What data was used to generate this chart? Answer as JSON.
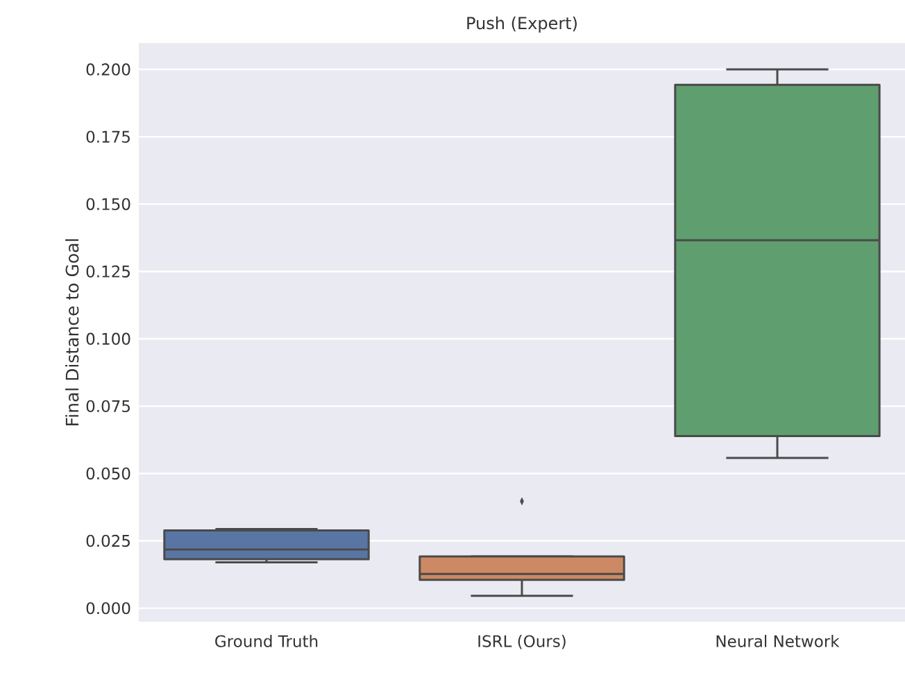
{
  "chart_data": {
    "type": "box",
    "title": "Push (Expert)",
    "ylabel": "Final Distance to Goal",
    "categories": [
      "Ground Truth",
      "ISRL (Ours)",
      "Neural Network"
    ],
    "colors": [
      "#5975a4",
      "#cc8963",
      "#5f9e6e"
    ],
    "boxes": [
      {
        "low": 0.017,
        "q1": 0.0182,
        "median": 0.0218,
        "q3": 0.0289,
        "high": 0.0294
      },
      {
        "low": 0.0046,
        "q1": 0.0105,
        "median": 0.0127,
        "q3": 0.0192,
        "high": 0.0192,
        "outliers": [
          0.0397
        ]
      },
      {
        "low": 0.0558,
        "q1": 0.0639,
        "median": 0.1366,
        "q3": 0.1943,
        "high": 0.2
      }
    ],
    "ylim": [
      -0.005,
      0.2098
    ],
    "yticks": [
      {
        "value": 0,
        "label": "0.000"
      },
      {
        "value": 0.025,
        "label": "0.025"
      },
      {
        "value": 0.05,
        "label": "0.050"
      },
      {
        "value": 0.075,
        "label": "0.075"
      },
      {
        "value": 0.1,
        "label": "0.100"
      },
      {
        "value": 0.125,
        "label": "0.125"
      },
      {
        "value": 0.15,
        "label": "0.150"
      },
      {
        "value": 0.175,
        "label": "0.175"
      },
      {
        "value": 0.2,
        "label": "0.200"
      }
    ],
    "grid": "y",
    "marker": "diamond"
  }
}
